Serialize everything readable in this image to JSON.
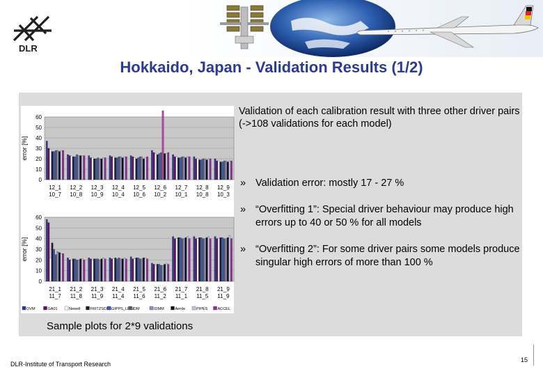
{
  "header": {
    "logo_text": "DLR",
    "title": "Hokkaido, Japan - Validation Results (1/2)"
  },
  "text": {
    "intro_bold": "Validation of each calibration result with three other driver pairs",
    "intro_normal": " (->108 validations for each model)",
    "bullets": [
      "Validation error: mostly 17 - 27 %",
      "“Overfitting 1”: Special driver behaviour may produce high errors up to 40 or 50 % for all models",
      "“Overfitting 2”: For some driver pairs some models produce singular high errors of more than 100 %"
    ],
    "bullet_mark": "»",
    "caption": "Sample plots for 2*9 validations"
  },
  "footer": {
    "institute": "DLR-Institute of Transport Research",
    "page_number": "15"
  },
  "colors": {
    "title": "#2a3a98",
    "panel": "#dcdcdc",
    "plot_bg": "#c8c8c8",
    "highlight": "#c03ab0"
  },
  "chart_data": [
    {
      "type": "bar",
      "ylabel": "error [%]",
      "ylim": [
        0,
        60
      ],
      "yticks": [
        0,
        10,
        20,
        30,
        40,
        50,
        60
      ],
      "categories": [
        "12_1 10_7",
        "12_2 10_8",
        "12_3 10_9",
        "12_4 10_4",
        "12_5 10_6",
        "12_6 10_2",
        "12_7 10_1",
        "12_8 10_8",
        "12_9 10_3"
      ],
      "series_count": 10,
      "values": [
        [
          37,
          30,
          29,
          27,
          27,
          28,
          28,
          27,
          28,
          28
        ],
        [
          24,
          23,
          23,
          22,
          22,
          24,
          23,
          23,
          23,
          23
        ],
        [
          23,
          21,
          21,
          20,
          20,
          21,
          20,
          20,
          21,
          21
        ],
        [
          23,
          22,
          22,
          21,
          21,
          22,
          22,
          21,
          22,
          22
        ],
        [
          23,
          22,
          21,
          20,
          21,
          22,
          22,
          20,
          21,
          22
        ],
        [
          28,
          26,
          25,
          24,
          25,
          26,
          66,
          25,
          25,
          26
        ],
        [
          24,
          22,
          22,
          21,
          21,
          22,
          22,
          21,
          22,
          22
        ],
        [
          22,
          20,
          20,
          19,
          19,
          20,
          20,
          19,
          20,
          20
        ],
        [
          20,
          18,
          18,
          17,
          17,
          18,
          18,
          17,
          18,
          18
        ]
      ]
    },
    {
      "type": "bar",
      "ylabel": "error [%]",
      "ylim": [
        0,
        60
      ],
      "yticks": [
        0,
        10,
        20,
        30,
        40,
        50,
        60
      ],
      "categories": [
        "21_1 11_7",
        "21_2 11_8",
        "21_3 11_9",
        "21_4 11_4",
        "21_5 11_6",
        "21_6 11_2",
        "21_7 11_1",
        "21_8 11_5",
        "21_9 11_9"
      ],
      "series_count": 10,
      "values": [
        [
          58,
          55,
          22,
          36,
          30,
          25,
          28,
          27,
          26,
          26
        ],
        [
          22,
          20,
          20,
          21,
          21,
          20,
          20,
          21,
          21,
          20
        ],
        [
          22,
          21,
          20,
          21,
          21,
          21,
          20,
          21,
          22,
          21
        ],
        [
          22,
          21,
          21,
          22,
          21,
          22,
          21,
          21,
          22,
          21
        ],
        [
          23,
          21,
          21,
          22,
          22,
          21,
          21,
          22,
          22,
          21
        ],
        [
          17,
          16,
          15,
          16,
          16,
          15,
          15,
          16,
          17,
          16
        ],
        [
          42,
          40,
          40,
          41,
          41,
          40,
          40,
          41,
          42,
          40
        ],
        [
          42,
          40,
          40,
          41,
          41,
          40,
          40,
          41,
          42,
          40
        ],
        [
          42,
          40,
          40,
          41,
          41,
          40,
          40,
          41,
          43,
          40
        ]
      ]
    }
  ],
  "legend": [
    "OVM",
    "GA01",
    "Newell",
    "FRITZSCHE",
    "GIPPS_LIKE",
    "IDM",
    "IDMM",
    "Aerde",
    "PIPES",
    "ACCEL"
  ]
}
